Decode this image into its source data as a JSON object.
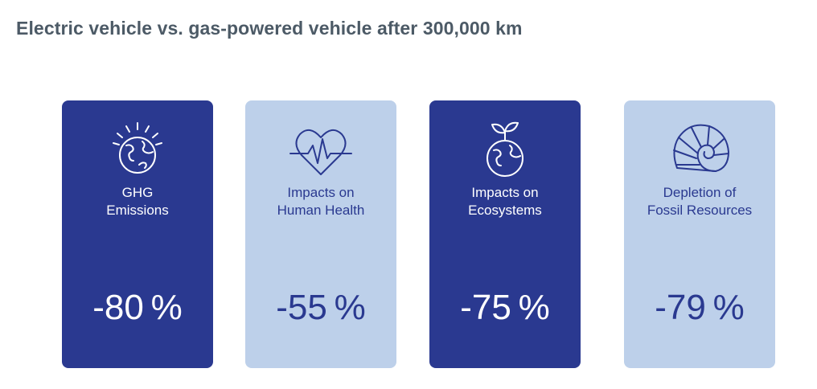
{
  "title": "Electric vehicle vs. gas-powered vehicle after 300,000 km",
  "cards": [
    {
      "icon": "globe-sun-icon",
      "label_line1": "GHG",
      "label_line2": "Emissions",
      "value": "-80 %",
      "style": "dark"
    },
    {
      "icon": "heart-pulse-icon",
      "label_line1": "Impacts on",
      "label_line2": "Human Health",
      "value": "-55 %",
      "style": "light"
    },
    {
      "icon": "globe-sprout-icon",
      "label_line1": "Impacts on",
      "label_line2": "Ecosystems",
      "value": "-75 %",
      "style": "dark"
    },
    {
      "icon": "ammonite-fossil-icon",
      "label_line1": "Depletion of",
      "label_line2": "Fossil Resources",
      "value": "-79 %",
      "style": "light"
    }
  ],
  "colors": {
    "dark_card": "#2a3990",
    "light_card": "#bdd0ea",
    "title": "#4c5a66"
  }
}
